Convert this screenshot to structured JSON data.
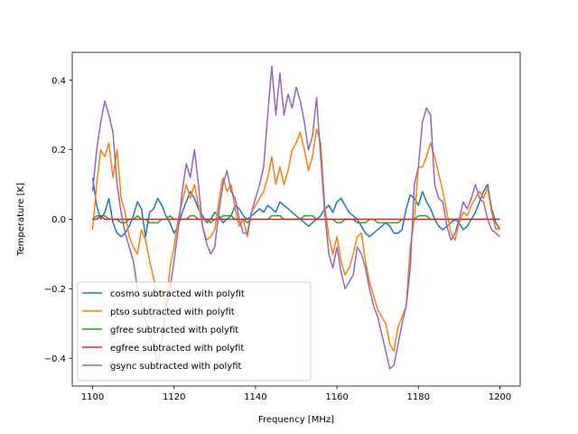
{
  "chart_data": {
    "type": "line",
    "title": "",
    "xlabel": "Frequency [MHz]",
    "ylabel": "Temperature [K]",
    "xlim": [
      1095,
      1205
    ],
    "ylim": [
      -0.48,
      0.48
    ],
    "xticks": [
      1100,
      1120,
      1140,
      1160,
      1180,
      1200
    ],
    "yticks": [
      -0.4,
      -0.2,
      0.0,
      0.2,
      0.4
    ],
    "ytick_labels": [
      "−0.4",
      "−0.2",
      "0.0",
      "0.2",
      "0.4"
    ],
    "grid": false,
    "legend_position": "lower-left",
    "x": [
      1100,
      1101,
      1102,
      1103,
      1104,
      1105,
      1106,
      1107,
      1108,
      1109,
      1110,
      1111,
      1112,
      1113,
      1114,
      1115,
      1116,
      1117,
      1118,
      1119,
      1120,
      1121,
      1122,
      1123,
      1124,
      1125,
      1126,
      1127,
      1128,
      1129,
      1130,
      1131,
      1132,
      1133,
      1134,
      1135,
      1136,
      1137,
      1138,
      1139,
      1140,
      1141,
      1142,
      1143,
      1144,
      1145,
      1146,
      1147,
      1148,
      1149,
      1150,
      1151,
      1152,
      1153,
      1154,
      1155,
      1156,
      1157,
      1158,
      1159,
      1160,
      1161,
      1162,
      1163,
      1164,
      1165,
      1166,
      1167,
      1168,
      1169,
      1170,
      1171,
      1172,
      1173,
      1174,
      1175,
      1176,
      1177,
      1178,
      1179,
      1180,
      1181,
      1182,
      1183,
      1184,
      1185,
      1186,
      1187,
      1188,
      1189,
      1190,
      1191,
      1192,
      1193,
      1194,
      1195,
      1196,
      1197,
      1198,
      1199,
      1200
    ],
    "series": [
      {
        "name": "cosmo subtracted with polyfit",
        "color": "#1f77b4",
        "values": [
          0.12,
          0.04,
          0.0,
          0.02,
          0.06,
          -0.01,
          -0.04,
          -0.05,
          -0.04,
          -0.02,
          0.01,
          0.05,
          0.03,
          -0.05,
          0.02,
          0.03,
          0.06,
          0.04,
          0.01,
          -0.01,
          -0.04,
          -0.02,
          0.02,
          0.05,
          0.08,
          0.06,
          0.03,
          0.01,
          -0.01,
          0.0,
          0.02,
          0.01,
          -0.01,
          0.0,
          0.01,
          0.04,
          0.03,
          0.01,
          0.0,
          0.01,
          0.02,
          0.03,
          0.02,
          0.04,
          0.03,
          0.02,
          0.05,
          0.04,
          0.03,
          0.02,
          0.01,
          0.0,
          -0.01,
          -0.02,
          -0.01,
          0.0,
          0.01,
          0.03,
          0.04,
          0.02,
          0.05,
          0.06,
          0.04,
          0.02,
          0.01,
          0.0,
          -0.02,
          -0.04,
          -0.05,
          -0.04,
          -0.03,
          -0.02,
          -0.01,
          -0.02,
          -0.04,
          -0.04,
          -0.03,
          0.03,
          0.07,
          0.06,
          0.04,
          0.08,
          0.05,
          0.03,
          0.0,
          -0.02,
          -0.03,
          -0.02,
          -0.01,
          0.0,
          -0.01,
          -0.03,
          -0.02,
          0.0,
          0.02,
          0.05,
          0.08,
          0.1,
          0.03,
          -0.01,
          -0.03
        ]
      },
      {
        "name": "ptso subtracted with polyfit",
        "color": "#ff7f0e",
        "values": [
          -0.03,
          0.1,
          0.2,
          0.18,
          0.22,
          0.12,
          0.2,
          0.06,
          0.02,
          -0.05,
          -0.08,
          -0.1,
          -0.03,
          -0.06,
          -0.12,
          -0.17,
          -0.22,
          -0.2,
          -0.26,
          -0.14,
          -0.08,
          0.0,
          0.05,
          0.1,
          0.06,
          0.1,
          0.04,
          -0.02,
          -0.06,
          -0.05,
          -0.03,
          0.05,
          0.12,
          0.08,
          0.1,
          0.03,
          -0.02,
          0.0,
          -0.05,
          0.02,
          0.04,
          0.06,
          0.08,
          0.12,
          0.18,
          0.1,
          0.15,
          0.1,
          0.14,
          0.2,
          0.22,
          0.25,
          0.2,
          0.14,
          0.18,
          0.26,
          0.22,
          0.04,
          -0.05,
          -0.1,
          -0.05,
          -0.12,
          -0.16,
          -0.14,
          -0.1,
          -0.05,
          -0.04,
          -0.12,
          -0.18,
          -0.22,
          -0.26,
          -0.28,
          -0.3,
          -0.36,
          -0.38,
          -0.31,
          -0.28,
          -0.25,
          -0.08,
          0.0,
          0.15,
          0.15,
          0.18,
          0.22,
          0.18,
          0.13,
          0.08,
          0.02,
          -0.04,
          -0.06,
          -0.01,
          0.02,
          0.01,
          0.04,
          0.06,
          0.08,
          0.06,
          0.09,
          0.02,
          -0.03,
          -0.02
        ]
      },
      {
        "name": "gfree subtracted with polyfit",
        "color": "#2ca02c",
        "values": [
          0.0,
          0.01,
          0.01,
          0.01,
          0.0,
          0.0,
          0.0,
          -0.01,
          -0.01,
          0.0,
          0.0,
          0.01,
          0.0,
          0.0,
          -0.01,
          -0.01,
          -0.01,
          0.0,
          0.0,
          0.01,
          0.0,
          0.0,
          0.0,
          0.0,
          0.01,
          0.01,
          0.0,
          0.0,
          0.0,
          -0.01,
          0.0,
          0.0,
          0.01,
          0.01,
          0.01,
          0.0,
          0.0,
          0.0,
          -0.01,
          0.0,
          0.0,
          0.0,
          0.0,
          0.0,
          0.01,
          0.01,
          0.01,
          0.0,
          0.0,
          0.0,
          0.0,
          0.0,
          0.01,
          0.01,
          0.01,
          0.0,
          0.0,
          0.0,
          0.0,
          0.0,
          -0.01,
          -0.01,
          0.0,
          0.0,
          0.0,
          -0.01,
          -0.01,
          -0.01,
          0.0,
          0.0,
          -0.01,
          -0.01,
          -0.01,
          -0.01,
          -0.01,
          -0.01,
          0.0,
          0.0,
          0.0,
          0.0,
          0.01,
          0.01,
          0.01,
          0.0,
          0.0,
          0.0,
          0.0,
          0.0,
          0.0,
          0.0,
          0.0,
          0.0,
          0.0,
          0.0,
          0.0,
          0.0,
          0.0,
          0.0,
          0.0,
          0.0,
          0.0
        ]
      },
      {
        "name": "egfree subtracted with polyfit",
        "color": "#d62728",
        "values": [
          0.0,
          0.0,
          0.01,
          0.0,
          0.0,
          0.0,
          0.0,
          0.0,
          0.0,
          0.0,
          0.0,
          0.0,
          0.0,
          0.0,
          0.0,
          0.0,
          0.0,
          0.0,
          0.0,
          0.0,
          0.0,
          0.0,
          0.0,
          0.0,
          0.0,
          0.0,
          0.0,
          0.0,
          0.0,
          0.0,
          0.0,
          0.0,
          0.0,
          0.0,
          0.0,
          0.0,
          0.0,
          0.0,
          0.0,
          0.0,
          0.0,
          0.0,
          0.0,
          0.0,
          0.0,
          0.0,
          0.0,
          0.0,
          0.0,
          0.0,
          0.0,
          0.0,
          0.0,
          0.0,
          0.0,
          0.0,
          0.0,
          0.0,
          0.0,
          0.0,
          0.0,
          0.0,
          0.0,
          0.0,
          0.0,
          0.0,
          0.0,
          0.0,
          0.0,
          0.0,
          0.0,
          0.0,
          0.0,
          0.0,
          0.0,
          0.0,
          0.0,
          0.0,
          0.0,
          0.0,
          0.0,
          0.0,
          0.0,
          0.0,
          0.0,
          0.0,
          0.0,
          0.0,
          0.0,
          0.0,
          0.0,
          0.0,
          0.0,
          0.0,
          0.0,
          0.0,
          0.0,
          0.0,
          0.0,
          0.0,
          0.0
        ]
      },
      {
        "name": "gsync subtracted with polyfit",
        "color": "#9467bd",
        "values": [
          0.08,
          0.2,
          0.28,
          0.34,
          0.3,
          0.25,
          0.1,
          0.02,
          -0.04,
          -0.08,
          -0.12,
          -0.2,
          -0.24,
          -0.3,
          -0.33,
          -0.36,
          -0.42,
          -0.35,
          -0.26,
          -0.2,
          -0.12,
          -0.03,
          0.08,
          0.16,
          0.12,
          0.2,
          0.1,
          -0.02,
          -0.07,
          -0.1,
          -0.08,
          0.02,
          0.1,
          0.14,
          0.08,
          0.06,
          0.0,
          -0.04,
          -0.04,
          0.02,
          0.06,
          0.1,
          0.15,
          0.3,
          0.44,
          0.3,
          0.42,
          0.3,
          0.36,
          0.32,
          0.38,
          0.34,
          0.28,
          0.2,
          0.24,
          0.35,
          0.18,
          0.02,
          -0.1,
          -0.14,
          -0.08,
          -0.15,
          -0.2,
          -0.18,
          -0.16,
          -0.08,
          -0.1,
          -0.14,
          -0.2,
          -0.25,
          -0.28,
          -0.33,
          -0.38,
          -0.43,
          -0.42,
          -0.36,
          -0.3,
          -0.25,
          -0.14,
          0.1,
          0.15,
          0.28,
          0.32,
          0.3,
          0.1,
          0.06,
          0.05,
          -0.02,
          -0.06,
          -0.04,
          0.0,
          0.05,
          0.03,
          0.06,
          0.1,
          0.06,
          0.05,
          0.0,
          -0.03,
          -0.04,
          -0.05
        ]
      }
    ]
  }
}
